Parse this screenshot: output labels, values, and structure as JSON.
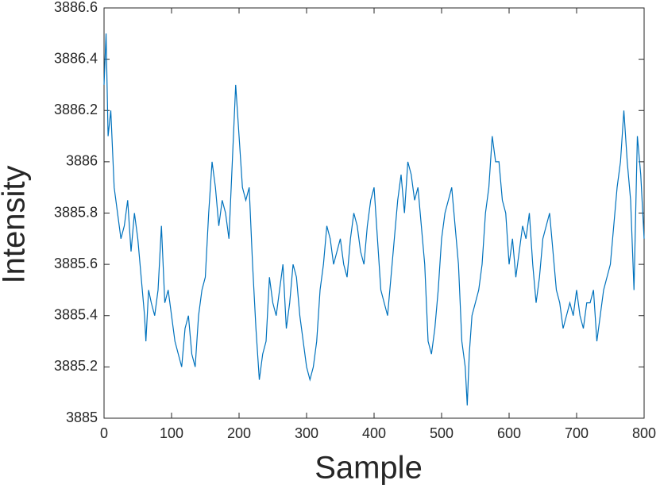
{
  "chart_data": {
    "type": "line",
    "xlabel": "Sample",
    "ylabel": "Intensity",
    "x": [
      0,
      3,
      6,
      10,
      15,
      20,
      25,
      30,
      35,
      40,
      45,
      50,
      55,
      60,
      62,
      66,
      70,
      75,
      80,
      85,
      90,
      95,
      100,
      105,
      110,
      115,
      120,
      125,
      130,
      135,
      140,
      145,
      150,
      155,
      160,
      165,
      170,
      175,
      180,
      185,
      190,
      195,
      200,
      205,
      210,
      215,
      220,
      225,
      230,
      235,
      240,
      245,
      250,
      255,
      260,
      265,
      270,
      275,
      280,
      285,
      290,
      295,
      300,
      305,
      310,
      315,
      320,
      325,
      330,
      335,
      340,
      345,
      350,
      355,
      360,
      365,
      370,
      375,
      380,
      385,
      390,
      395,
      400,
      405,
      410,
      415,
      420,
      425,
      430,
      435,
      440,
      445,
      450,
      455,
      460,
      465,
      470,
      475,
      480,
      485,
      490,
      495,
      500,
      505,
      510,
      515,
      520,
      525,
      530,
      535,
      538,
      541,
      545,
      550,
      555,
      560,
      565,
      570,
      575,
      580,
      585,
      590,
      595,
      600,
      605,
      610,
      615,
      620,
      625,
      630,
      635,
      640,
      645,
      650,
      655,
      660,
      665,
      670,
      675,
      680,
      685,
      690,
      695,
      700,
      705,
      710,
      715,
      720,
      725,
      730,
      735,
      740,
      745,
      750,
      755,
      760,
      765,
      770,
      775,
      780,
      785,
      790,
      795,
      800
    ],
    "series": [
      {
        "name": "Intensity",
        "color": "#0072bd",
        "values": [
          3886.3,
          3886.5,
          3886.1,
          3886.2,
          3885.9,
          3885.8,
          3885.7,
          3885.75,
          3885.85,
          3885.65,
          3885.8,
          3885.7,
          3885.55,
          3885.4,
          3885.3,
          3885.5,
          3885.45,
          3885.4,
          3885.5,
          3885.75,
          3885.45,
          3885.5,
          3885.4,
          3885.3,
          3885.25,
          3885.2,
          3885.35,
          3885.4,
          3885.25,
          3885.2,
          3885.4,
          3885.5,
          3885.55,
          3885.8,
          3886.0,
          3885.9,
          3885.75,
          3885.85,
          3885.8,
          3885.7,
          3886.0,
          3886.3,
          3886.1,
          3885.9,
          3885.85,
          3885.9,
          3885.6,
          3885.35,
          3885.15,
          3885.25,
          3885.3,
          3885.55,
          3885.45,
          3885.4,
          3885.5,
          3885.6,
          3885.35,
          3885.45,
          3885.6,
          3885.55,
          3885.4,
          3885.3,
          3885.2,
          3885.15,
          3885.2,
          3885.3,
          3885.5,
          3885.6,
          3885.75,
          3885.7,
          3885.6,
          3885.65,
          3885.7,
          3885.6,
          3885.55,
          3885.7,
          3885.8,
          3885.75,
          3885.65,
          3885.6,
          3885.75,
          3885.85,
          3885.9,
          3885.7,
          3885.5,
          3885.45,
          3885.4,
          3885.55,
          3885.7,
          3885.85,
          3885.95,
          3885.8,
          3886.0,
          3885.95,
          3885.85,
          3885.9,
          3885.75,
          3885.6,
          3885.3,
          3885.25,
          3885.35,
          3885.5,
          3885.7,
          3885.8,
          3885.85,
          3885.9,
          3885.75,
          3885.6,
          3885.3,
          3885.2,
          3885.05,
          3885.25,
          3885.4,
          3885.45,
          3885.5,
          3885.6,
          3885.8,
          3885.9,
          3886.1,
          3886.0,
          3886.0,
          3885.85,
          3885.8,
          3885.6,
          3885.7,
          3885.55,
          3885.65,
          3885.75,
          3885.7,
          3885.8,
          3885.6,
          3885.45,
          3885.55,
          3885.7,
          3885.75,
          3885.8,
          3885.65,
          3885.5,
          3885.45,
          3885.35,
          3885.4,
          3885.45,
          3885.4,
          3885.5,
          3885.4,
          3885.35,
          3885.45,
          3885.45,
          3885.5,
          3885.3,
          3885.4,
          3885.5,
          3885.55,
          3885.6,
          3885.75,
          3885.9,
          3886.0,
          3886.2,
          3886.0,
          3885.85,
          3885.5,
          3886.1,
          3885.95,
          3885.7
        ]
      }
    ],
    "xlim": [
      0,
      800
    ],
    "xticks": [
      0,
      100,
      200,
      300,
      400,
      500,
      600,
      700,
      800
    ],
    "ylim": [
      3885,
      3886.6
    ],
    "yticks": [
      3885,
      3885.2,
      3885.4,
      3885.6,
      3885.8,
      3886,
      3886.2,
      3886.4,
      3886.6
    ],
    "grid": false
  }
}
